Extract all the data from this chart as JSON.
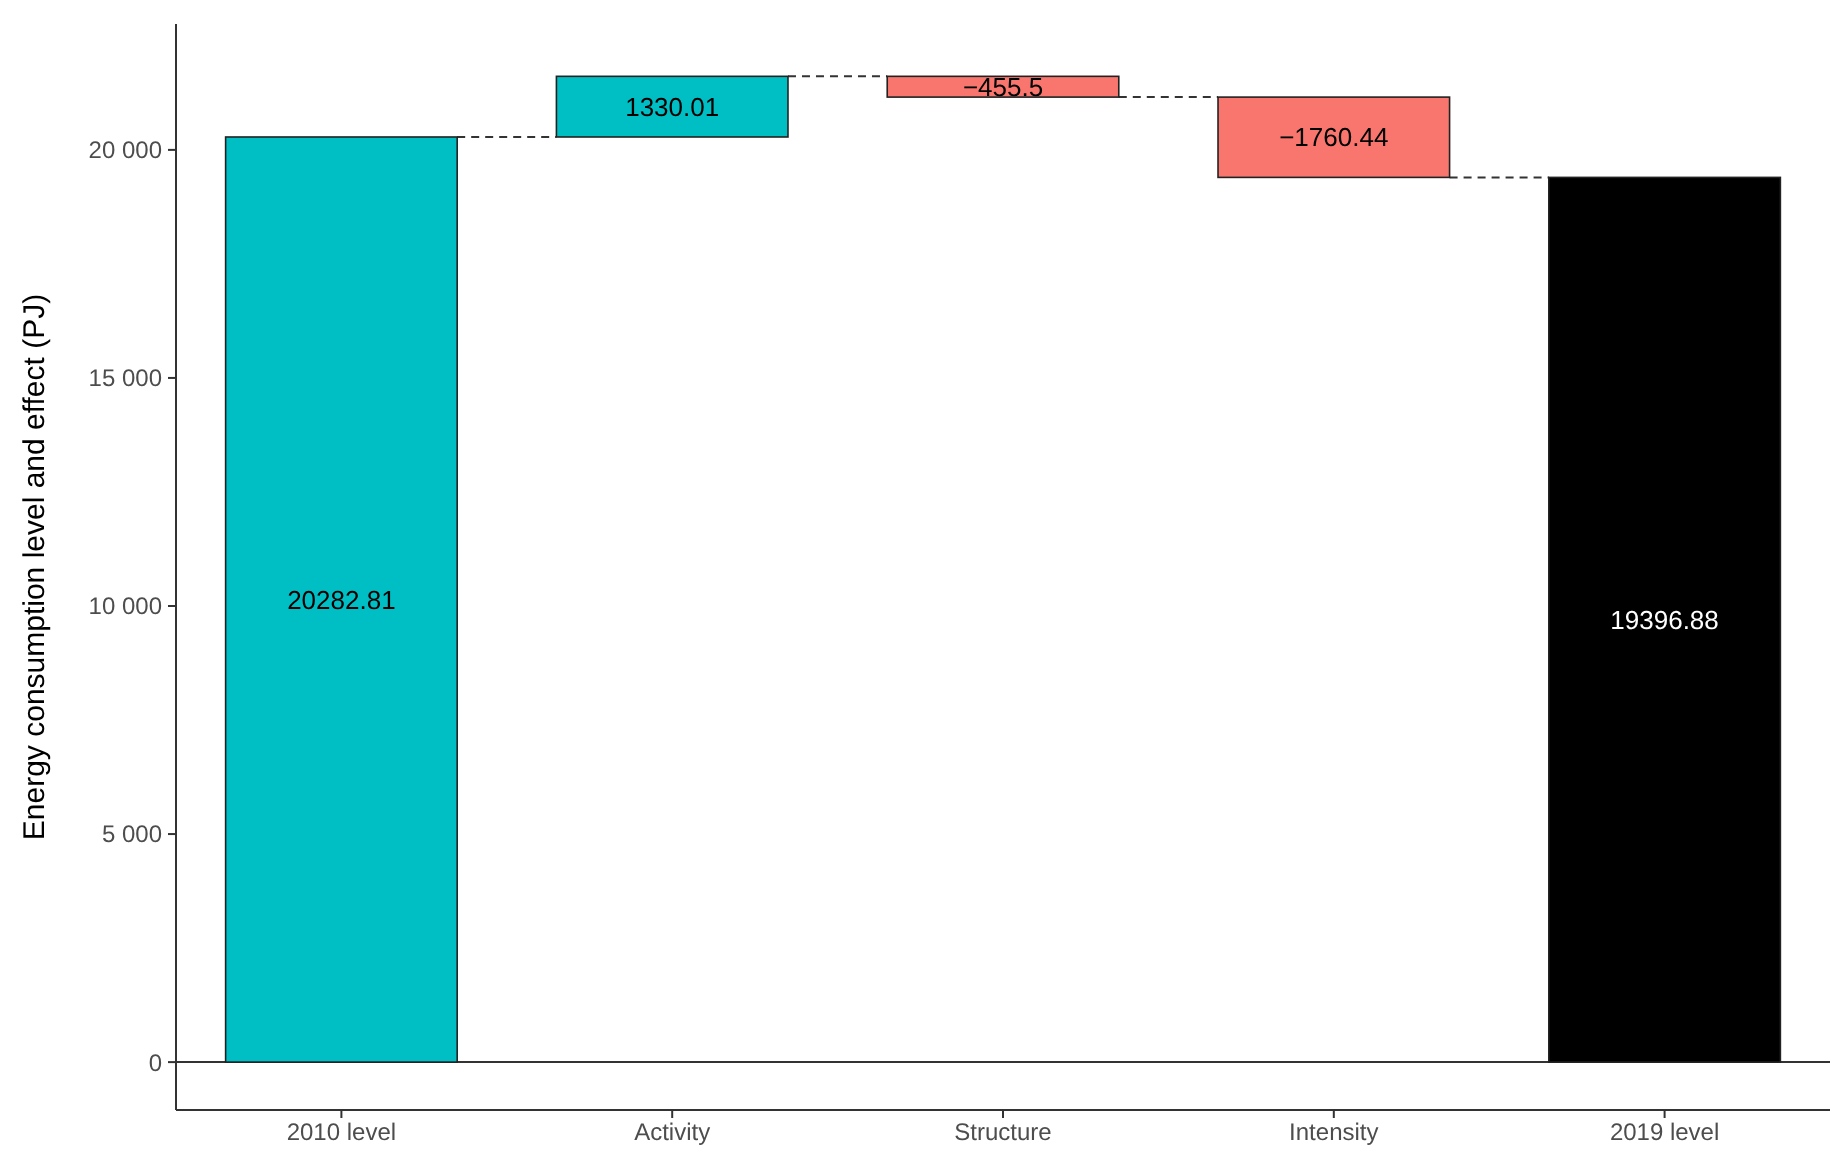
{
  "chart_data": {
    "type": "bar",
    "ylabel": "Energy consumption level and effect (PJ)",
    "categories": [
      "2010 level",
      "Activity",
      "Structure",
      "Intensity",
      "2019 level"
    ],
    "values": [
      20282.81,
      1330.01,
      -455.5,
      -1760.44,
      19396.88
    ],
    "base": [
      0,
      20282.81,
      21612.82,
      21157.32,
      0
    ],
    "colors": [
      "#00bfc4",
      "#00bfc4",
      "#f8766d",
      "#f8766d",
      "#000000"
    ],
    "data_labels": true,
    "ylim": [
      -1050,
      22760
    ],
    "yticks": [
      0,
      {
        "value": 5000,
        "label": "5 000"
      },
      {
        "value": 10000,
        "label": "10 000"
      },
      {
        "value": 15000,
        "label": "15 000"
      },
      {
        "value": 20000,
        "label": "20 000"
      }
    ],
    "ref_lines": [
      {
        "axis": "y",
        "value": 0,
        "color": "#333333"
      }
    ],
    "grid": false
  }
}
